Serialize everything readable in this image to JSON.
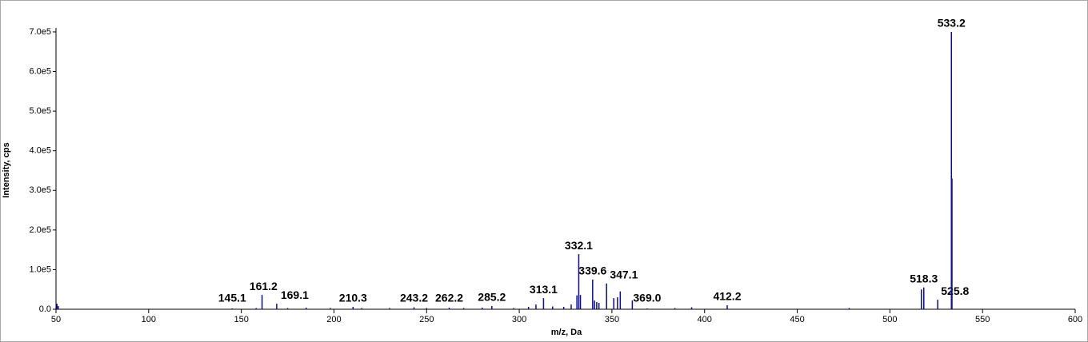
{
  "chart_data": {
    "type": "stem",
    "x_label": "m/z, Da",
    "y_label": "Intensity, cps",
    "color": "#0a0aa0",
    "xlim": [
      50,
      600
    ],
    "ylim": [
      0,
      710000
    ],
    "xticks": [
      50,
      100,
      150,
      200,
      250,
      300,
      350,
      400,
      450,
      500,
      550,
      600
    ],
    "yticks": [
      {
        "value": 0,
        "label": "0.0"
      },
      {
        "value": 100000,
        "label": "1.0e5"
      },
      {
        "value": 200000,
        "label": "2.0e5"
      },
      {
        "value": 300000,
        "label": "3.0e5"
      },
      {
        "value": 400000,
        "label": "4.0e5"
      },
      {
        "value": 500000,
        "label": "5.0e5"
      },
      {
        "value": 600000,
        "label": "6.0e5"
      },
      {
        "value": 700000,
        "label": "7.0e5"
      }
    ],
    "x": [
      50.5,
      51.2,
      145.1,
      158.0,
      161.2,
      169.1,
      175.0,
      185.0,
      198.0,
      210.3,
      215.0,
      230.0,
      243.2,
      250.0,
      262.2,
      270.0,
      280.0,
      285.2,
      297.0,
      305.0,
      309.0,
      313.1,
      318.0,
      324.0,
      328.0,
      331.1,
      332.1,
      333.0,
      339.6,
      340.6,
      341.8,
      343.0,
      347.1,
      351.0,
      353.0,
      354.5,
      361.0,
      369.0,
      384.0,
      393.0,
      412.2,
      478.0,
      517.0,
      518.3,
      525.8,
      533.2,
      533.5
    ],
    "values": [
      14000,
      8000,
      2000,
      3000,
      36000,
      14000,
      3000,
      4000,
      3000,
      6000,
      3000,
      3000,
      5000,
      3000,
      4000,
      3000,
      4000,
      8000,
      3000,
      6000,
      12000,
      28000,
      7000,
      6000,
      12000,
      35000,
      139000,
      36000,
      75000,
      22000,
      18000,
      16000,
      65000,
      28000,
      30000,
      45000,
      22000,
      2000,
      3000,
      5000,
      10000,
      3000,
      50000,
      55000,
      24000,
      700000,
      330000
    ],
    "labels": [
      null,
      null,
      "145.1",
      null,
      "161.2",
      "169.1",
      null,
      null,
      null,
      "210.3",
      null,
      null,
      "243.2",
      null,
      "262.2",
      null,
      null,
      "285.2",
      null,
      null,
      null,
      "313.1",
      null,
      null,
      null,
      null,
      "332.1",
      null,
      "339.6",
      null,
      null,
      null,
      "347.1",
      null,
      null,
      null,
      null,
      "369.0",
      null,
      null,
      "412.2",
      null,
      null,
      "518.3",
      "525.8",
      "533.2",
      null
    ]
  }
}
